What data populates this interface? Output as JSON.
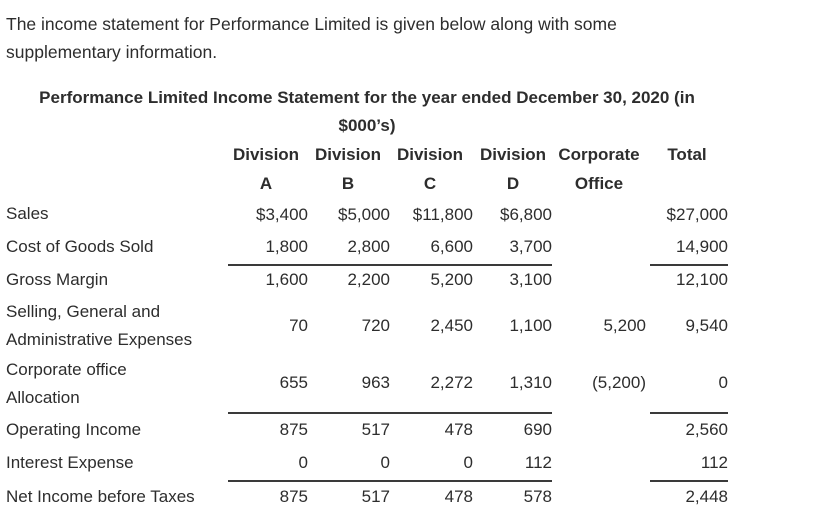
{
  "intro": [
    "The income statement for Performance Limited is given below along with some",
    "supplementary information."
  ],
  "title": [
    "Performance Limited Income Statement for the year ended December 30, 2020 (in",
    "$000’s)"
  ],
  "columns": [
    {
      "line1": "Division",
      "line2": "A"
    },
    {
      "line1": "Division",
      "line2": "B"
    },
    {
      "line1": "Division",
      "line2": "C"
    },
    {
      "line1": "Division",
      "line2": "D"
    },
    {
      "line1": "Corporate",
      "line2": "Office"
    },
    {
      "line1": "Total",
      "line2": ""
    }
  ],
  "rows": [
    {
      "label": [
        "Sales"
      ],
      "values": [
        "$3,400",
        "$5,000",
        "$11,800",
        "$6,800",
        "",
        "$27,000"
      ]
    },
    {
      "label": [
        "Cost of Goods Sold"
      ],
      "values": [
        "1,800",
        "2,800",
        "6,600",
        "3,700",
        "",
        "14,900"
      ]
    },
    {
      "label": [
        "Gross Margin"
      ],
      "values": [
        "1,600",
        "2,200",
        "5,200",
        "3,100",
        "",
        "12,100"
      ]
    },
    {
      "label": [
        "Selling, General and",
        "Administrative Expenses"
      ],
      "values": [
        "70",
        "720",
        "2,450",
        "1,100",
        "5,200",
        "9,540"
      ]
    },
    {
      "label": [
        "Corporate office",
        "Allocation"
      ],
      "values": [
        "655",
        "963",
        "2,272",
        "1,310",
        "(5,200)",
        "0"
      ]
    },
    {
      "label": [
        "Operating Income"
      ],
      "values": [
        "875",
        "517",
        "478",
        "690",
        "",
        "2,560"
      ]
    },
    {
      "label": [
        "Interest Expense"
      ],
      "values": [
        "0",
        "0",
        "0",
        "112",
        "",
        "112"
      ]
    },
    {
      "label": [
        "Net Income before Taxes"
      ],
      "values": [
        "875",
        "517",
        "478",
        "578",
        "",
        "2,448"
      ]
    }
  ]
}
